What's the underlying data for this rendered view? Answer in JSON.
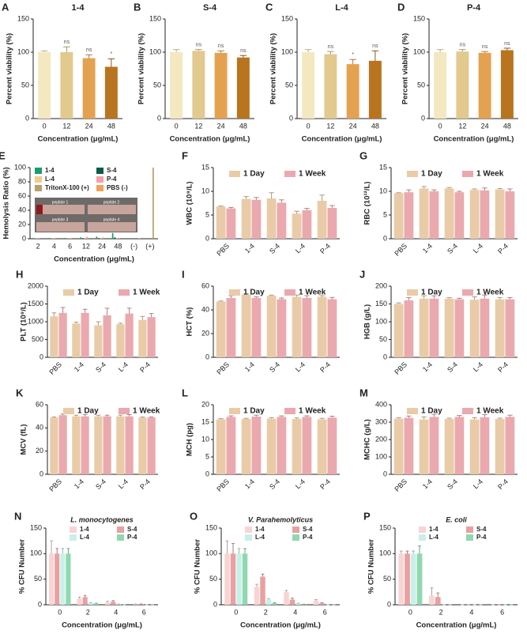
{
  "chart_data": [
    {
      "type": "bar",
      "panel": "A",
      "title": "1-4",
      "xlabel": "Concentration (μg/mL)",
      "ylabel": "Percent viability (%)",
      "categories": [
        "0",
        "12",
        "24",
        "48"
      ],
      "values": [
        100,
        100,
        91,
        78
      ],
      "errors": [
        2,
        8,
        5,
        12
      ],
      "colors": [
        "#f3e8c0",
        "#e2c98e",
        "#e4a250",
        "#b9741f"
      ],
      "annotations": [
        null,
        "ns",
        "ns",
        "*"
      ],
      "ylim": [
        0,
        150
      ],
      "yticks": [
        0,
        50,
        100,
        150
      ]
    },
    {
      "type": "bar",
      "panel": "B",
      "title": "S-4",
      "xlabel": "Concentration (μg/mL)",
      "ylabel": "Percent viability (%)",
      "categories": [
        "0",
        "12",
        "24",
        "48"
      ],
      "values": [
        100,
        102,
        99,
        92
      ],
      "errors": [
        4,
        2,
        3,
        3
      ],
      "colors": [
        "#f3e8c0",
        "#e2c98e",
        "#e4a250",
        "#b9741f"
      ],
      "annotations": [
        null,
        "ns",
        "ns",
        "ns"
      ],
      "ylim": [
        0,
        150
      ],
      "yticks": [
        0,
        50,
        100,
        150
      ]
    },
    {
      "type": "bar",
      "panel": "C",
      "title": "L-4",
      "xlabel": "Concentration (μg/mL)",
      "ylabel": "Percent viability (%)",
      "categories": [
        "0",
        "12",
        "24",
        "48"
      ],
      "values": [
        100,
        97,
        82,
        87
      ],
      "errors": [
        4,
        4,
        7,
        15
      ],
      "colors": [
        "#f3e8c0",
        "#e2c98e",
        "#e4a250",
        "#b9741f"
      ],
      "annotations": [
        null,
        "ns",
        "*",
        "ns"
      ],
      "ylim": [
        0,
        150
      ],
      "yticks": [
        0,
        50,
        100,
        150
      ]
    },
    {
      "type": "bar",
      "panel": "D",
      "title": "P-4",
      "xlabel": "Concentration (μg/mL)",
      "ylabel": "Percent viability (%)",
      "categories": [
        "0",
        "12",
        "24",
        "48"
      ],
      "values": [
        100,
        101,
        99,
        103
      ],
      "errors": [
        4,
        3,
        2,
        3
      ],
      "colors": [
        "#f3e8c0",
        "#e2c98e",
        "#e4a250",
        "#b9741f"
      ],
      "annotations": [
        null,
        "ns",
        "ns",
        "ns"
      ],
      "ylim": [
        0,
        150
      ],
      "yticks": [
        0,
        50,
        100,
        150
      ]
    },
    {
      "type": "bar",
      "panel": "E",
      "xlabel": "Concentration (μg/mL)",
      "ylabel": "Hemolysis Ratio (%)",
      "categories": [
        "2",
        "4",
        "6",
        "12",
        "24",
        "48",
        "(-)",
        "(+)"
      ],
      "series": [
        {
          "name": "1-4",
          "color": "#1a9e6e",
          "values": [
            1,
            1,
            1,
            2,
            3,
            8,
            null,
            null
          ]
        },
        {
          "name": "S-4",
          "color": "#0d5c4a",
          "values": [
            0.5,
            0.5,
            0.5,
            1,
            1,
            2,
            null,
            null
          ]
        },
        {
          "name": "L-4",
          "color": "#f5c98a",
          "values": [
            0.5,
            0.5,
            0.5,
            1,
            1,
            1,
            null,
            null
          ]
        },
        {
          "name": "P-4",
          "color": "#f4a0a8",
          "values": [
            1,
            1,
            1,
            3,
            2,
            1,
            null,
            null
          ]
        },
        {
          "name": "TritonX-100 (+)",
          "color": "#b5a070",
          "values": [
            null,
            null,
            null,
            null,
            null,
            null,
            null,
            100
          ]
        },
        {
          "name": "PBS (-)",
          "color": "#f2a05a",
          "values": [
            null,
            null,
            null,
            null,
            null,
            null,
            0.5,
            null
          ]
        }
      ],
      "inset_labels": [
        "peptide 1",
        "peptide 2",
        "peptide 3",
        "peptide 4"
      ],
      "ylim": [
        0,
        100
      ],
      "yticks": [
        0,
        20,
        40,
        60,
        80,
        100
      ]
    },
    {
      "type": "bar",
      "panel": "F",
      "ylabel": "WBC (10⁹/L)",
      "categories": [
        "PBS",
        "1-4",
        "S-4",
        "L-4",
        "P-4"
      ],
      "series": [
        {
          "name": "1 Day",
          "color": "#e9cba8",
          "values": [
            6.8,
            8.4,
            8.5,
            5.3,
            8.0
          ],
          "errors": [
            0.1,
            0.5,
            1.2,
            0.5,
            1.2
          ]
        },
        {
          "name": "1 Week",
          "color": "#eaa9ae",
          "values": [
            6.4,
            8.2,
            7.6,
            6.0,
            6.5
          ],
          "errors": [
            0.2,
            0.5,
            0.6,
            0.4,
            0.5
          ]
        }
      ],
      "ylim": [
        0,
        15
      ],
      "yticks": [
        0,
        5,
        10,
        15
      ]
    },
    {
      "type": "bar",
      "panel": "G",
      "ylabel": "RBC (10¹²/L)",
      "categories": [
        "PBS",
        "1-4",
        "S-4",
        "L-4",
        "P-4"
      ],
      "series": [
        {
          "name": "1 Day",
          "color": "#e9cba8",
          "values": [
            9.6,
            10.6,
            10.6,
            10.3,
            10.4
          ],
          "errors": [
            0.1,
            0.4,
            0.2,
            0.2,
            0.2
          ]
        },
        {
          "name": "1 Week",
          "color": "#eaa9ae",
          "values": [
            9.8,
            10.0,
            9.8,
            10.2,
            10.0
          ],
          "errors": [
            0.5,
            0.3,
            0.2,
            0.5,
            0.5
          ]
        }
      ],
      "ylim": [
        0,
        15
      ],
      "yticks": [
        0,
        5,
        10,
        15
      ]
    },
    {
      "type": "bar",
      "panel": "H",
      "ylabel": "PLT (10⁹/L)",
      "categories": [
        "PBS",
        "1-4",
        "S-4",
        "L-4",
        "P-4"
      ],
      "series": [
        {
          "name": "1 Day",
          "color": "#e9cba8",
          "values": [
            1150,
            950,
            900,
            930,
            1050
          ],
          "errors": [
            100,
            40,
            100,
            30,
            100
          ]
        },
        {
          "name": "1 Week",
          "color": "#eaa9ae",
          "values": [
            1250,
            1250,
            1180,
            1230,
            1130
          ],
          "errors": [
            150,
            100,
            200,
            150,
            100
          ]
        }
      ],
      "ylim": [
        0,
        2000
      ],
      "yticks": [
        0,
        500,
        1000,
        1500,
        2000
      ]
    },
    {
      "type": "bar",
      "panel": "I",
      "ylabel": "HCT (%)",
      "categories": [
        "PBS",
        "1-4",
        "S-4",
        "L-4",
        "P-4"
      ],
      "series": [
        {
          "name": "1 Day",
          "color": "#e9cba8",
          "values": [
            47,
            53,
            52,
            51,
            51
          ],
          "errors": [
            0.5,
            0.5,
            0.5,
            1.5,
            1
          ]
        },
        {
          "name": "1 Week",
          "color": "#eaa9ae",
          "values": [
            50,
            50,
            49,
            50,
            49
          ],
          "errors": [
            2,
            1,
            1,
            2,
            1.5
          ]
        }
      ],
      "ylim": [
        0,
        60
      ],
      "yticks": [
        0,
        20,
        40,
        60
      ]
    },
    {
      "type": "bar",
      "panel": "J",
      "ylabel": "HGB (g/L)",
      "categories": [
        "PBS",
        "1-4",
        "S-4",
        "L-4",
        "P-4"
      ],
      "series": [
        {
          "name": "1 Day",
          "color": "#e9cba8",
          "values": [
            150,
            165,
            165,
            162,
            163
          ],
          "errors": [
            3,
            8,
            3,
            8,
            5
          ]
        },
        {
          "name": "1 Week",
          "color": "#eaa9ae",
          "values": [
            160,
            165,
            163,
            165,
            163
          ],
          "errors": [
            8,
            8,
            3,
            10,
            5
          ]
        }
      ],
      "ylim": [
        0,
        200
      ],
      "yticks": [
        0,
        50,
        100,
        150,
        200
      ]
    },
    {
      "type": "bar",
      "panel": "K",
      "ylabel": "MCV (fL)",
      "categories": [
        "PBS",
        "1-4",
        "S-4",
        "L-4",
        "P-4"
      ],
      "series": [
        {
          "name": "1 Day",
          "color": "#e9cba8",
          "values": [
            49,
            50,
            50,
            50,
            49
          ],
          "errors": [
            0.5,
            1,
            1,
            1,
            0.5
          ]
        },
        {
          "name": "1 Week",
          "color": "#eaa9ae",
          "values": [
            51,
            50,
            50,
            50,
            49
          ],
          "errors": [
            1,
            1.5,
            1,
            1.5,
            0.5
          ]
        }
      ],
      "ylim": [
        0,
        60
      ],
      "yticks": [
        0,
        20,
        40,
        60
      ]
    },
    {
      "type": "bar",
      "panel": "L",
      "ylabel": "MCH (pg)",
      "categories": [
        "PBS",
        "1-4",
        "S-4",
        "L-4",
        "P-4"
      ],
      "series": [
        {
          "name": "1 Day",
          "color": "#e9cba8",
          "values": [
            15.8,
            15.9,
            16,
            15.9,
            15.8
          ],
          "errors": [
            0.2,
            0.2,
            0.3,
            0.3,
            0.3
          ]
        },
        {
          "name": "1 Week",
          "color": "#eaa9ae",
          "values": [
            16.5,
            16.6,
            16.5,
            16.5,
            16.3
          ],
          "errors": [
            0.3,
            0.4,
            0.3,
            0.3,
            0.4
          ]
        }
      ],
      "ylim": [
        0,
        20
      ],
      "yticks": [
        0,
        5,
        10,
        15,
        20
      ]
    },
    {
      "type": "bar",
      "panel": "M",
      "ylabel": "MCHC (g/L)",
      "categories": [
        "PBS",
        "1-4",
        "S-4",
        "L-4",
        "P-4"
      ],
      "series": [
        {
          "name": "1 Day",
          "color": "#e9cba8",
          "values": [
            320,
            315,
            318,
            315,
            318
          ],
          "errors": [
            5,
            15,
            5,
            10,
            5
          ]
        },
        {
          "name": "1 Week",
          "color": "#eaa9ae",
          "values": [
            325,
            330,
            330,
            328,
            330
          ],
          "errors": [
            10,
            15,
            8,
            15,
            10
          ]
        }
      ],
      "ylim": [
        0,
        400
      ],
      "yticks": [
        0,
        100,
        200,
        300,
        400
      ]
    },
    {
      "type": "bar",
      "panel": "N",
      "subtitle": "L. monocytogenes",
      "xlabel": "Concentration (μg/mL)",
      "ylabel": "% CFU Number",
      "categories": [
        "0",
        "2",
        "4",
        "6"
      ],
      "series": [
        {
          "name": "1-4",
          "color": "#f9d4d4",
          "values": [
            100,
            12,
            5,
            1
          ],
          "errors": [
            25,
            3,
            2,
            0.5
          ]
        },
        {
          "name": "S-4",
          "color": "#e8a0a0",
          "values": [
            100,
            15,
            6,
            1
          ],
          "errors": [
            10,
            3,
            2,
            0.5
          ]
        },
        {
          "name": "L-4",
          "color": "#c8f0e8",
          "values": [
            100,
            3,
            1,
            0
          ],
          "errors": [
            10,
            1,
            0.5,
            0
          ]
        },
        {
          "name": "P-4",
          "color": "#90d8b0",
          "values": [
            100,
            2,
            0,
            0
          ],
          "errors": [
            10,
            1,
            0,
            0
          ]
        }
      ],
      "ylim": [
        0,
        150
      ],
      "yticks": [
        0,
        50,
        100,
        150
      ]
    },
    {
      "type": "bar",
      "panel": "O",
      "subtitle": "V. Parahemolyticus",
      "xlabel": "Concentration (μg/mL)",
      "ylabel": "% CFU Number",
      "categories": [
        "0",
        "2",
        "4",
        "6"
      ],
      "series": [
        {
          "name": "1-4",
          "color": "#f9d4d4",
          "values": [
            100,
            35,
            25,
            8
          ],
          "errors": [
            25,
            5,
            3,
            2
          ]
        },
        {
          "name": "S-4",
          "color": "#e8a0a0",
          "values": [
            100,
            55,
            10,
            3
          ],
          "errors": [
            20,
            5,
            3,
            1
          ]
        },
        {
          "name": "L-4",
          "color": "#c8f0e8",
          "values": [
            100,
            10,
            2,
            0
          ],
          "errors": [
            10,
            2,
            1,
            0
          ]
        },
        {
          "name": "P-4",
          "color": "#90d8b0",
          "values": [
            100,
            3,
            1,
            0
          ],
          "errors": [
            10,
            1,
            0,
            0
          ]
        }
      ],
      "ylim": [
        0,
        150
      ],
      "yticks": [
        0,
        50,
        100,
        150
      ]
    },
    {
      "type": "bar",
      "panel": "P",
      "subtitle": "E. coli",
      "xlabel": "Concentration (μg/mL)",
      "ylabel": "% CFU Number",
      "categories": [
        "0",
        "2",
        "4",
        "6"
      ],
      "series": [
        {
          "name": "1-4",
          "color": "#f9d4d4",
          "values": [
            100,
            18,
            0,
            0
          ],
          "errors": [
            5,
            15,
            0,
            0
          ]
        },
        {
          "name": "S-4",
          "color": "#e8a0a0",
          "values": [
            100,
            15,
            0,
            0
          ],
          "errors": [
            5,
            8,
            0,
            0
          ]
        },
        {
          "name": "L-4",
          "color": "#c8f0e8",
          "values": [
            100,
            0,
            0,
            0
          ],
          "errors": [
            5,
            0,
            0,
            0
          ]
        },
        {
          "name": "P-4",
          "color": "#90d8b0",
          "values": [
            100,
            0,
            0,
            0
          ],
          "errors": [
            15,
            0,
            0,
            0
          ]
        }
      ],
      "ylim": [
        0,
        150
      ],
      "yticks": [
        0,
        50,
        100,
        150
      ]
    }
  ]
}
